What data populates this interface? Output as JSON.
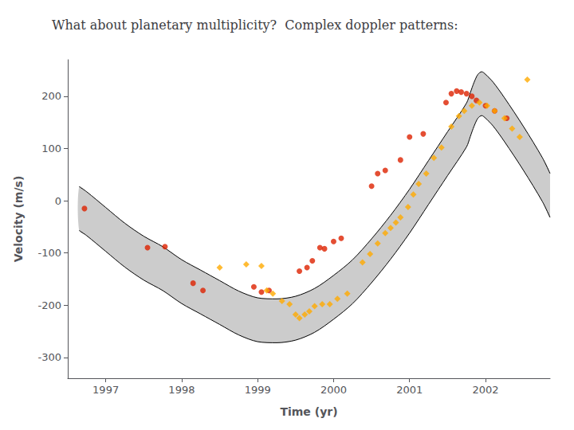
{
  "chart_data": {
    "type": "scatter",
    "title": "What about planetary multiplicity?  Complex doppler patterns:",
    "xlabel": "Time (yr)",
    "ylabel": "Velocity (m/s)",
    "xlim": [
      1996.5,
      2002.85
    ],
    "ylim": [
      -340,
      270
    ],
    "xticks": [
      1997,
      1998,
      1999,
      2000,
      2001,
      2002
    ],
    "yticks": [
      -300,
      -200,
      -100,
      0,
      100,
      200
    ],
    "grid": false,
    "series": [
      {
        "type": "band",
        "color": "#000000",
        "x": [
          1996.65,
          1996.75,
          1997.0,
          1997.25,
          1997.5,
          1997.75,
          1998.0,
          1998.25,
          1998.5,
          1998.75,
          1999.0,
          1999.25,
          1999.5,
          1999.75,
          2000.0,
          2000.25,
          2000.5,
          2000.75,
          2001.0,
          2001.25,
          2001.5,
          2001.75,
          2001.8,
          2001.85,
          2001.9,
          2001.95,
          2002.0,
          2002.1,
          2002.25,
          2002.5,
          2002.75,
          2002.85
        ],
        "upper": [
          27,
          17,
          -13,
          -43,
          -68,
          -88,
          -113,
          -133,
          -153,
          -173,
          -186,
          -188,
          -183,
          -168,
          -143,
          -113,
          -73,
          -28,
          22,
          77,
          132,
          187,
          207,
          227,
          242,
          247,
          242,
          227,
          197,
          142,
          82,
          52
        ],
        "lower": [
          -57,
          -67,
          -97,
          -127,
          -152,
          -172,
          -197,
          -217,
          -237,
          -257,
          -270,
          -272,
          -267,
          -252,
          -227,
          -197,
          -157,
          -112,
          -62,
          -7,
          48,
          103,
          123,
          143,
          158,
          163,
          158,
          143,
          113,
          58,
          -2,
          -32
        ]
      },
      {
        "type": "scatter",
        "color": "#dd2200",
        "marker": "circle",
        "x": [
          1996.72,
          1997.55,
          1997.78,
          1998.15,
          1998.28,
          1998.95,
          1999.05,
          1999.15,
          1999.55,
          1999.65,
          1999.72,
          1999.82,
          1999.88,
          2000.0,
          2000.1,
          2000.5,
          2000.58,
          2000.68,
          2000.88,
          2001.0,
          2001.18,
          2001.48,
          2001.55,
          2001.62,
          2001.68,
          2001.75,
          2001.82,
          2001.88,
          2002.0,
          2002.12,
          2002.28
        ],
        "values": [
          -15,
          -90,
          -88,
          -158,
          -172,
          -165,
          -175,
          -172,
          -135,
          -128,
          -115,
          -90,
          -92,
          -78,
          -72,
          28,
          52,
          58,
          78,
          122,
          128,
          188,
          205,
          210,
          208,
          205,
          200,
          192,
          182,
          172,
          158
        ]
      },
      {
        "type": "scatter",
        "color": "#ffaa00",
        "marker": "diamond",
        "x": [
          1998.5,
          1998.85,
          1999.05,
          1999.12,
          1999.2,
          1999.32,
          1999.42,
          1999.5,
          1999.55,
          1999.62,
          1999.68,
          1999.75,
          1999.85,
          1999.95,
          2000.05,
          2000.18,
          2000.38,
          2000.48,
          2000.58,
          2000.68,
          2000.75,
          2000.82,
          2000.88,
          2000.98,
          2001.05,
          2001.12,
          2001.22,
          2001.32,
          2001.42,
          2001.55,
          2001.65,
          2001.72,
          2001.82,
          2001.92,
          2002.02,
          2002.12,
          2002.25,
          2002.35,
          2002.45,
          2002.55
        ],
        "values": [
          -128,
          -122,
          -125,
          -172,
          -178,
          -192,
          -198,
          -218,
          -225,
          -218,
          -212,
          -202,
          -198,
          -198,
          -188,
          -178,
          -118,
          -102,
          -82,
          -62,
          -52,
          -42,
          -32,
          -12,
          12,
          32,
          52,
          82,
          102,
          142,
          162,
          172,
          182,
          188,
          182,
          172,
          158,
          138,
          122,
          232
        ]
      }
    ]
  }
}
